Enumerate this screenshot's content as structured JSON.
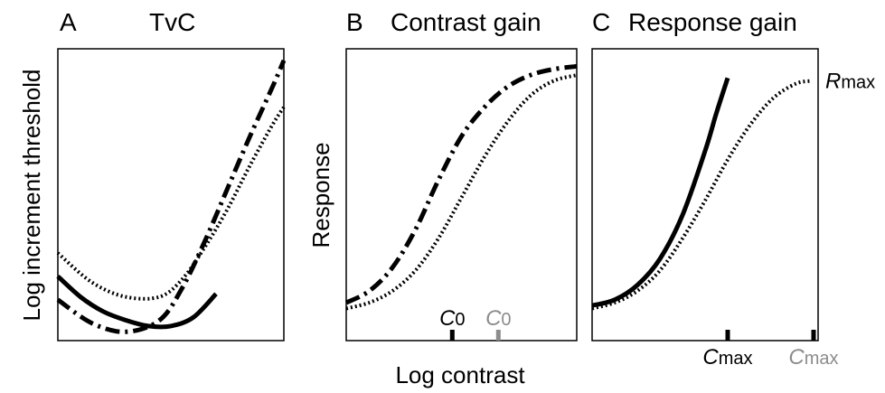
{
  "panels": {
    "a": {
      "letter": "A",
      "title": "TvC"
    },
    "b": {
      "letter": "B",
      "title": "Contrast gain"
    },
    "c": {
      "letter": "C",
      "title": "Response gain"
    }
  },
  "axes": {
    "a_ylabel": "Log increment threshold",
    "bc_ylabel": "Response",
    "shared_xlabel": "Log contrast"
  },
  "annotations": {
    "b_c0_first": {
      "base": "C",
      "sub": "0"
    },
    "b_c0_second": {
      "base": "C",
      "sub": "0"
    },
    "c_cmax_first": {
      "base": "C",
      "sub": "max"
    },
    "c_cmax_second": {
      "base": "C",
      "sub": "max"
    },
    "c_rmax": {
      "base": "R",
      "sub": "max"
    }
  },
  "colors": {
    "line": "#000000",
    "secondary_label": "#8c8c8c",
    "background": "#ffffff"
  },
  "chart_data": [
    {
      "type": "line",
      "panel": "A",
      "title": "TvC",
      "xlabel": "",
      "ylabel": "Log increment threshold",
      "xlim": [
        0,
        1
      ],
      "ylim": [
        0,
        1
      ],
      "series": [
        {
          "style": "solid",
          "x": [
            0,
            0.1,
            0.2,
            0.3,
            0.4,
            0.5,
            0.6,
            0.7
          ],
          "y": [
            0.22,
            0.15,
            0.1,
            0.07,
            0.05,
            0.05,
            0.08,
            0.16
          ]
        },
        {
          "style": "dash-dot",
          "x": [
            0,
            0.15,
            0.3,
            0.45,
            0.55,
            0.65,
            0.75,
            0.85,
            0.95,
            1.0
          ],
          "y": [
            0.14,
            0.06,
            0.03,
            0.07,
            0.18,
            0.34,
            0.52,
            0.7,
            0.87,
            0.96
          ]
        },
        {
          "style": "dotted",
          "x": [
            0,
            0.15,
            0.3,
            0.45,
            0.55,
            0.65,
            0.75,
            0.85,
            0.95,
            1.0
          ],
          "y": [
            0.3,
            0.2,
            0.15,
            0.15,
            0.21,
            0.32,
            0.45,
            0.6,
            0.74,
            0.8
          ]
        }
      ]
    },
    {
      "type": "line",
      "panel": "B",
      "title": "Contrast gain",
      "xlabel": "Log contrast",
      "ylabel": "Response",
      "xlim": [
        0,
        1
      ],
      "ylim": [
        0,
        1
      ],
      "series": [
        {
          "style": "dash-dot",
          "x": [
            0,
            0.1,
            0.2,
            0.3,
            0.4,
            0.5,
            0.6,
            0.7,
            0.8,
            0.9,
            1.0
          ],
          "y": [
            0.13,
            0.17,
            0.25,
            0.38,
            0.55,
            0.7,
            0.8,
            0.87,
            0.91,
            0.93,
            0.94
          ]
        },
        {
          "style": "dotted",
          "x": [
            0,
            0.1,
            0.2,
            0.3,
            0.4,
            0.5,
            0.6,
            0.7,
            0.8,
            0.9,
            1.0
          ],
          "y": [
            0.11,
            0.13,
            0.17,
            0.24,
            0.35,
            0.49,
            0.63,
            0.75,
            0.84,
            0.89,
            0.91
          ]
        }
      ],
      "annotations": [
        {
          "label": "C0",
          "x": 0.46,
          "color": "#000000"
        },
        {
          "label": "C0",
          "x": 0.66,
          "color": "#8c8c8c"
        }
      ]
    },
    {
      "type": "line",
      "panel": "C",
      "title": "Response gain",
      "xlabel": "Log contrast",
      "ylabel": "Response",
      "xlim": [
        0,
        1
      ],
      "ylim": [
        0,
        1
      ],
      "series": [
        {
          "style": "solid",
          "x": [
            0,
            0.1,
            0.2,
            0.3,
            0.4,
            0.5,
            0.55,
            0.6
          ],
          "y": [
            0.12,
            0.14,
            0.19,
            0.28,
            0.43,
            0.65,
            0.78,
            0.9
          ]
        },
        {
          "style": "dotted",
          "x": [
            0,
            0.1,
            0.2,
            0.3,
            0.4,
            0.5,
            0.6,
            0.7,
            0.8,
            0.9,
            0.97
          ],
          "y": [
            0.11,
            0.13,
            0.17,
            0.24,
            0.35,
            0.48,
            0.62,
            0.74,
            0.83,
            0.88,
            0.89
          ]
        }
      ],
      "annotations": [
        {
          "label": "Cmax",
          "x": 0.6,
          "color": "#000000"
        },
        {
          "label": "Cmax",
          "x": 0.98,
          "color": "#8c8c8c"
        },
        {
          "label": "Rmax",
          "y": 0.89,
          "color": "#000000"
        }
      ]
    }
  ]
}
